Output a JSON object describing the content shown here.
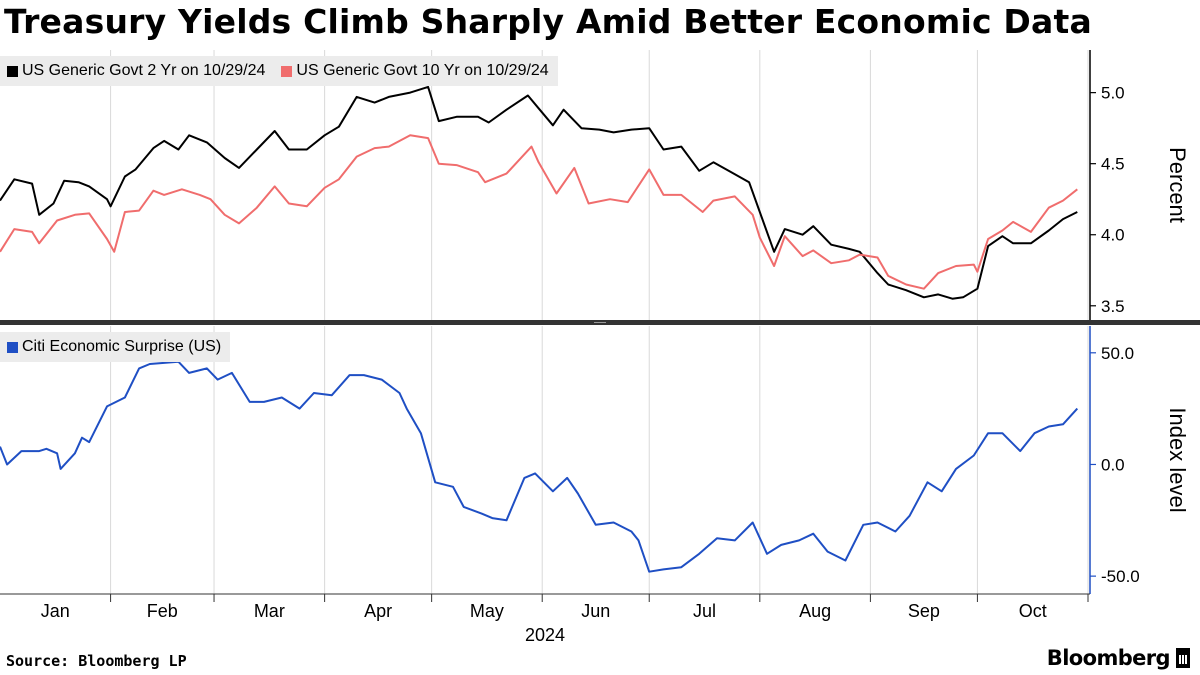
{
  "title": "Treasury Yields Climb Sharply Amid Better Economic Data",
  "source": "Source: Bloomberg LP",
  "brand": "Bloomberg",
  "chart_data": [
    {
      "type": "line",
      "ylabel": "Percent",
      "ylim": [
        3.4,
        5.3
      ],
      "yticks": [
        3.5,
        4.0,
        4.5,
        5.0
      ],
      "ytick_labels": [
        "3.5",
        "4.0",
        "4.5",
        "5.0"
      ],
      "legend": "top-left",
      "series": [
        {
          "name": "US Generic Govt 2 Yr on 10/29/24",
          "color": "#000000",
          "points": [
            [
              "2024-01-01",
              4.24
            ],
            [
              "2024-01-05",
              4.39
            ],
            [
              "2024-01-10",
              4.36
            ],
            [
              "2024-01-12",
              4.14
            ],
            [
              "2024-01-16",
              4.22
            ],
            [
              "2024-01-19",
              4.38
            ],
            [
              "2024-01-23",
              4.37
            ],
            [
              "2024-01-26",
              4.34
            ],
            [
              "2024-01-31",
              4.25
            ],
            [
              "2024-02-01",
              4.2
            ],
            [
              "2024-02-05",
              4.41
            ],
            [
              "2024-02-08",
              4.46
            ],
            [
              "2024-02-13",
              4.61
            ],
            [
              "2024-02-16",
              4.66
            ],
            [
              "2024-02-20",
              4.6
            ],
            [
              "2024-02-23",
              4.7
            ],
            [
              "2024-02-28",
              4.65
            ],
            [
              "2024-03-04",
              4.54
            ],
            [
              "2024-03-08",
              4.47
            ],
            [
              "2024-03-13",
              4.6
            ],
            [
              "2024-03-18",
              4.73
            ],
            [
              "2024-03-22",
              4.6
            ],
            [
              "2024-03-27",
              4.6
            ],
            [
              "2024-04-01",
              4.7
            ],
            [
              "2024-04-05",
              4.76
            ],
            [
              "2024-04-10",
              4.97
            ],
            [
              "2024-04-15",
              4.93
            ],
            [
              "2024-04-19",
              4.97
            ],
            [
              "2024-04-25",
              5.0
            ],
            [
              "2024-04-30",
              5.04
            ],
            [
              "2024-05-03",
              4.8
            ],
            [
              "2024-05-08",
              4.83
            ],
            [
              "2024-05-14",
              4.83
            ],
            [
              "2024-05-17",
              4.79
            ],
            [
              "2024-05-22",
              4.88
            ],
            [
              "2024-05-28",
              4.98
            ],
            [
              "2024-05-31",
              4.89
            ],
            [
              "2024-06-04",
              4.77
            ],
            [
              "2024-06-07",
              4.88
            ],
            [
              "2024-06-12",
              4.75
            ],
            [
              "2024-06-17",
              4.74
            ],
            [
              "2024-06-21",
              4.72
            ],
            [
              "2024-06-26",
              4.74
            ],
            [
              "2024-07-01",
              4.75
            ],
            [
              "2024-07-05",
              4.6
            ],
            [
              "2024-07-10",
              4.62
            ],
            [
              "2024-07-15",
              4.45
            ],
            [
              "2024-07-19",
              4.51
            ],
            [
              "2024-07-24",
              4.44
            ],
            [
              "2024-07-29",
              4.37
            ],
            [
              "2024-08-01",
              4.16
            ],
            [
              "2024-08-05",
              3.88
            ],
            [
              "2024-08-08",
              4.04
            ],
            [
              "2024-08-13",
              4.0
            ],
            [
              "2024-08-16",
              4.06
            ],
            [
              "2024-08-21",
              3.93
            ],
            [
              "2024-08-26",
              3.9
            ],
            [
              "2024-08-29",
              3.88
            ],
            [
              "2024-09-03",
              3.73
            ],
            [
              "2024-09-06",
              3.65
            ],
            [
              "2024-09-11",
              3.61
            ],
            [
              "2024-09-16",
              3.56
            ],
            [
              "2024-09-20",
              3.58
            ],
            [
              "2024-09-24",
              3.55
            ],
            [
              "2024-09-27",
              3.56
            ],
            [
              "2024-10-01",
              3.62
            ],
            [
              "2024-10-04",
              3.92
            ],
            [
              "2024-10-08",
              3.99
            ],
            [
              "2024-10-11",
              3.94
            ],
            [
              "2024-10-16",
              3.94
            ],
            [
              "2024-10-21",
              4.03
            ],
            [
              "2024-10-25",
              4.11
            ],
            [
              "2024-10-29",
              4.16
            ]
          ]
        },
        {
          "name": "US Generic Govt 10 Yr on 10/29/24",
          "color": "#f06d6d",
          "points": [
            [
              "2024-01-01",
              3.88
            ],
            [
              "2024-01-05",
              4.04
            ],
            [
              "2024-01-10",
              4.02
            ],
            [
              "2024-01-12",
              3.94
            ],
            [
              "2024-01-17",
              4.1
            ],
            [
              "2024-01-22",
              4.14
            ],
            [
              "2024-01-26",
              4.15
            ],
            [
              "2024-01-31",
              3.97
            ],
            [
              "2024-02-02",
              3.88
            ],
            [
              "2024-02-05",
              4.16
            ],
            [
              "2024-02-09",
              4.17
            ],
            [
              "2024-02-13",
              4.31
            ],
            [
              "2024-02-16",
              4.28
            ],
            [
              "2024-02-21",
              4.32
            ],
            [
              "2024-02-26",
              4.28
            ],
            [
              "2024-02-29",
              4.25
            ],
            [
              "2024-03-04",
              4.14
            ],
            [
              "2024-03-08",
              4.08
            ],
            [
              "2024-03-13",
              4.19
            ],
            [
              "2024-03-18",
              4.34
            ],
            [
              "2024-03-22",
              4.22
            ],
            [
              "2024-03-27",
              4.2
            ],
            [
              "2024-04-01",
              4.33
            ],
            [
              "2024-04-05",
              4.39
            ],
            [
              "2024-04-10",
              4.55
            ],
            [
              "2024-04-15",
              4.61
            ],
            [
              "2024-04-19",
              4.62
            ],
            [
              "2024-04-25",
              4.7
            ],
            [
              "2024-04-30",
              4.68
            ],
            [
              "2024-05-03",
              4.5
            ],
            [
              "2024-05-08",
              4.49
            ],
            [
              "2024-05-14",
              4.44
            ],
            [
              "2024-05-16",
              4.37
            ],
            [
              "2024-05-22",
              4.43
            ],
            [
              "2024-05-29",
              4.62
            ],
            [
              "2024-05-31",
              4.51
            ],
            [
              "2024-06-05",
              4.29
            ],
            [
              "2024-06-10",
              4.47
            ],
            [
              "2024-06-14",
              4.22
            ],
            [
              "2024-06-20",
              4.25
            ],
            [
              "2024-06-25",
              4.23
            ],
            [
              "2024-07-01",
              4.46
            ],
            [
              "2024-07-05",
              4.28
            ],
            [
              "2024-07-10",
              4.28
            ],
            [
              "2024-07-16",
              4.16
            ],
            [
              "2024-07-19",
              4.24
            ],
            [
              "2024-07-25",
              4.27
            ],
            [
              "2024-07-30",
              4.14
            ],
            [
              "2024-08-01",
              3.98
            ],
            [
              "2024-08-05",
              3.78
            ],
            [
              "2024-08-08",
              3.99
            ],
            [
              "2024-08-13",
              3.85
            ],
            [
              "2024-08-16",
              3.89
            ],
            [
              "2024-08-21",
              3.8
            ],
            [
              "2024-08-26",
              3.82
            ],
            [
              "2024-08-29",
              3.86
            ],
            [
              "2024-09-03",
              3.84
            ],
            [
              "2024-09-06",
              3.71
            ],
            [
              "2024-09-11",
              3.65
            ],
            [
              "2024-09-16",
              3.62
            ],
            [
              "2024-09-20",
              3.73
            ],
            [
              "2024-09-25",
              3.78
            ],
            [
              "2024-09-30",
              3.79
            ],
            [
              "2024-10-01",
              3.74
            ],
            [
              "2024-10-04",
              3.97
            ],
            [
              "2024-10-08",
              4.03
            ],
            [
              "2024-10-11",
              4.09
            ],
            [
              "2024-10-16",
              4.02
            ],
            [
              "2024-10-21",
              4.19
            ],
            [
              "2024-10-25",
              4.24
            ],
            [
              "2024-10-29",
              4.32
            ]
          ]
        }
      ]
    },
    {
      "type": "line",
      "ylabel": "Index level",
      "ylim": [
        -58,
        62
      ],
      "yticks": [
        -50,
        0,
        50
      ],
      "ytick_labels": [
        "-50.0",
        "0.0",
        "50.0"
      ],
      "legend": "top-left",
      "series": [
        {
          "name": "Citi Economic Surprise (US)",
          "color": "#1f4fc4",
          "points": [
            [
              "2024-01-01",
              8
            ],
            [
              "2024-01-03",
              0
            ],
            [
              "2024-01-07",
              6
            ],
            [
              "2024-01-12",
              6
            ],
            [
              "2024-01-14",
              7
            ],
            [
              "2024-01-17",
              5
            ],
            [
              "2024-01-18",
              -2
            ],
            [
              "2024-01-22",
              5
            ],
            [
              "2024-01-24",
              12
            ],
            [
              "2024-01-26",
              10
            ],
            [
              "2024-01-31",
              26
            ],
            [
              "2024-02-05",
              30
            ],
            [
              "2024-02-09",
              43
            ],
            [
              "2024-02-12",
              45
            ],
            [
              "2024-02-20",
              46
            ],
            [
              "2024-02-23",
              41
            ],
            [
              "2024-02-28",
              43
            ],
            [
              "2024-03-02",
              38
            ],
            [
              "2024-03-06",
              41
            ],
            [
              "2024-03-11",
              28
            ],
            [
              "2024-03-15",
              28
            ],
            [
              "2024-03-20",
              30
            ],
            [
              "2024-03-25",
              25
            ],
            [
              "2024-03-29",
              32
            ],
            [
              "2024-04-03",
              31
            ],
            [
              "2024-04-08",
              40
            ],
            [
              "2024-04-12",
              40
            ],
            [
              "2024-04-17",
              38
            ],
            [
              "2024-04-22",
              32
            ],
            [
              "2024-04-24",
              25
            ],
            [
              "2024-04-28",
              14
            ],
            [
              "2024-05-02",
              -8
            ],
            [
              "2024-05-07",
              -10
            ],
            [
              "2024-05-10",
              -19
            ],
            [
              "2024-05-15",
              -22
            ],
            [
              "2024-05-18",
              -24
            ],
            [
              "2024-05-22",
              -25
            ],
            [
              "2024-05-27",
              -6
            ],
            [
              "2024-05-30",
              -4
            ],
            [
              "2024-06-04",
              -12
            ],
            [
              "2024-06-08",
              -6
            ],
            [
              "2024-06-11",
              -13
            ],
            [
              "2024-06-16",
              -27
            ],
            [
              "2024-06-21",
              -26
            ],
            [
              "2024-06-26",
              -30
            ],
            [
              "2024-06-28",
              -34
            ],
            [
              "2024-07-01",
              -48
            ],
            [
              "2024-07-05",
              -47
            ],
            [
              "2024-07-10",
              -46
            ],
            [
              "2024-07-15",
              -40
            ],
            [
              "2024-07-20",
              -33
            ],
            [
              "2024-07-25",
              -34
            ],
            [
              "2024-07-30",
              -26
            ],
            [
              "2024-08-03",
              -40
            ],
            [
              "2024-08-07",
              -36
            ],
            [
              "2024-08-12",
              -34
            ],
            [
              "2024-08-16",
              -31
            ],
            [
              "2024-08-20",
              -39
            ],
            [
              "2024-08-25",
              -43
            ],
            [
              "2024-08-30",
              -27
            ],
            [
              "2024-09-03",
              -26
            ],
            [
              "2024-09-08",
              -30
            ],
            [
              "2024-09-12",
              -23
            ],
            [
              "2024-09-17",
              -8
            ],
            [
              "2024-09-21",
              -12
            ],
            [
              "2024-09-25",
              -2
            ],
            [
              "2024-09-30",
              4
            ],
            [
              "2024-10-04",
              14
            ],
            [
              "2024-10-08",
              14
            ],
            [
              "2024-10-13",
              6
            ],
            [
              "2024-10-17",
              14
            ],
            [
              "2024-10-21",
              17
            ],
            [
              "2024-10-25",
              18
            ],
            [
              "2024-10-29",
              25
            ]
          ]
        }
      ]
    }
  ],
  "x_axis": {
    "start": "2024-01-01",
    "end": "2024-11-01",
    "months": [
      {
        "label": "Jan",
        "start": "2024-01-01"
      },
      {
        "label": "Feb",
        "start": "2024-02-01"
      },
      {
        "label": "Mar",
        "start": "2024-03-01"
      },
      {
        "label": "Apr",
        "start": "2024-04-01"
      },
      {
        "label": "May",
        "start": "2024-05-01"
      },
      {
        "label": "Jun",
        "start": "2024-06-01"
      },
      {
        "label": "Jul",
        "start": "2024-07-01"
      },
      {
        "label": "Aug",
        "start": "2024-08-01"
      },
      {
        "label": "Sep",
        "start": "2024-09-01"
      },
      {
        "label": "Oct",
        "start": "2024-10-01"
      }
    ],
    "year_label": "2024"
  }
}
